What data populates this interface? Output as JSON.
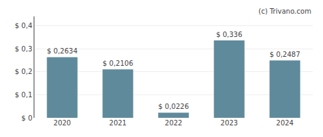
{
  "chart_data": {
    "type": "bar",
    "categories": [
      "2020",
      "2021",
      "2022",
      "2023",
      "2024"
    ],
    "values": [
      0.2634,
      0.2106,
      0.0226,
      0.336,
      0.2487
    ],
    "value_labels": [
      "$ 0,2634",
      "$ 0,2106",
      "$ 0,0226",
      "$ 0,336",
      "$ 0,2487"
    ],
    "color": "#5f8a9b",
    "ylim": [
      0,
      0.44
    ],
    "yticks": [
      {
        "value": 0.0,
        "label": "$ 0"
      },
      {
        "value": 0.1,
        "label": "$ 0,1"
      },
      {
        "value": 0.2,
        "label": "$ 0,2"
      },
      {
        "value": 0.3,
        "label": "$ 0,3"
      },
      {
        "value": 0.4,
        "label": "$ 0,4"
      }
    ],
    "grid": true,
    "annotations": [
      "(c) Trivano.com"
    ]
  }
}
